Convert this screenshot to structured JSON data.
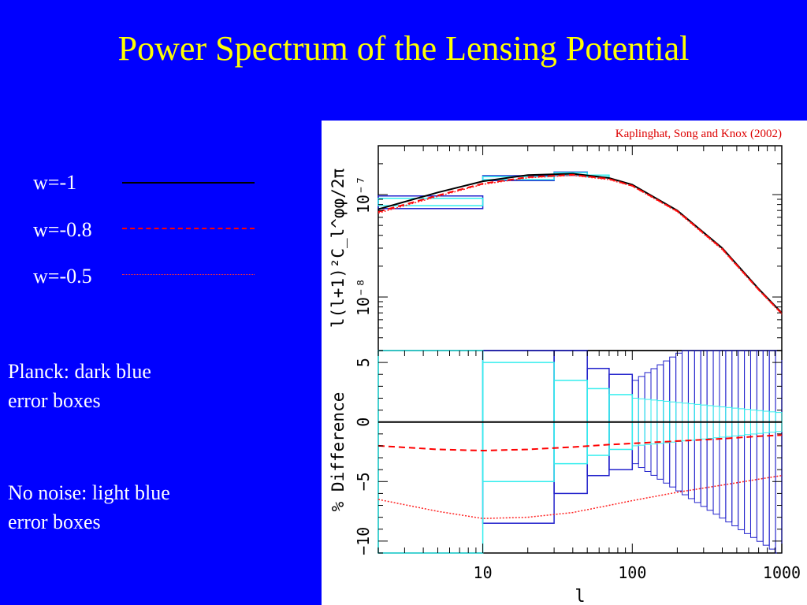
{
  "slide_title": "Power Spectrum of the Lensing Potential",
  "legend": [
    {
      "label": "w=-1",
      "color": "#000000",
      "style": "solid"
    },
    {
      "label": "w=-0.8",
      "color": "#ff0000",
      "style": "dashed"
    },
    {
      "label": "w=-0.5",
      "color": "#ff3333",
      "style": "dotted"
    }
  ],
  "notes": {
    "planck": [
      "Planck:  dark blue",
      "error boxes"
    ],
    "no_noise": [
      "No noise:  light blue",
      "error boxes"
    ]
  },
  "colors": {
    "background": "#0000ff",
    "title": "#ffff00",
    "planck_boxes": "#2222cc",
    "no_noise_boxes": "#33eeee",
    "citation": "#dd0000"
  },
  "chart_data": [
    {
      "type": "line",
      "citation": "Kaplinghat, Song and Knox (2002)",
      "ylabel": "l(l+1)²C_l^φφ/2π",
      "x_scale": "log",
      "y_scale": "log",
      "xlim": [
        2,
        1000
      ],
      "ylim": [
        3e-09,
        3e-07
      ],
      "y_tick_labels": [
        "10⁻⁷",
        "10⁻⁸"
      ],
      "x": [
        2,
        5,
        10,
        20,
        40,
        70,
        100,
        200,
        400,
        700,
        1000
      ],
      "series": [
        {
          "name": "w=-1",
          "values": [
            7.2e-08,
            1.05e-07,
            1.35e-07,
            1.55e-07,
            1.6e-07,
            1.45e-07,
            1.25e-07,
            7e-08,
            3e-08,
            1.2e-08,
            7e-09
          ]
        },
        {
          "name": "w=-0.8",
          "values": [
            6.8e-08,
            9.8e-08,
            1.28e-07,
            1.48e-07,
            1.56e-07,
            1.42e-07,
            1.22e-07,
            6.9e-08,
            2.95e-08,
            1.18e-08,
            6.9e-09
          ]
        },
        {
          "name": "w=-0.5",
          "values": [
            6.6e-08,
            9.6e-08,
            1.26e-07,
            1.46e-07,
            1.54e-07,
            1.4e-07,
            1.21e-07,
            6.8e-08,
            2.9e-08,
            1.17e-08,
            6.8e-09
          ]
        }
      ],
      "planck_error_boxes": [
        {
          "l_min": 2,
          "l_max": 10,
          "center": 8.5e-08,
          "half_width": 1.2e-08
        },
        {
          "l_min": 10,
          "l_max": 30,
          "center": 1.45e-07,
          "half_width": 8e-09
        },
        {
          "l_min": 30,
          "l_max": 50,
          "center": 1.6e-07,
          "half_width": 6e-09
        }
      ],
      "no_noise_error_boxes": [
        {
          "l_min": 2,
          "l_max": 10,
          "center": 8.5e-08,
          "half_width": 7e-09
        },
        {
          "l_min": 10,
          "l_max": 30,
          "center": 1.45e-07,
          "half_width": 5e-09
        },
        {
          "l_min": 30,
          "l_max": 50,
          "center": 1.6e-07,
          "half_width": 4e-09
        },
        {
          "l_min": 50,
          "l_max": 70,
          "center": 1.52e-07,
          "half_width": 3e-09
        }
      ]
    },
    {
      "type": "line",
      "xlabel": "l",
      "ylabel": "% Difference",
      "x_scale": "log",
      "xlim": [
        2,
        1000
      ],
      "ylim": [
        -11,
        6
      ],
      "x_tick_labels": [
        "10",
        "100",
        "1000"
      ],
      "y_tick_labels": [
        "−10",
        "−5",
        "0",
        "5"
      ],
      "x": [
        2,
        5,
        10,
        20,
        40,
        70,
        100,
        200,
        400,
        700,
        1000
      ],
      "series": [
        {
          "name": "w=-1",
          "values": [
            0,
            0,
            0,
            0,
            0,
            0,
            0,
            0,
            0,
            0,
            0
          ]
        },
        {
          "name": "w=-0.8",
          "values": [
            -2.0,
            -2.3,
            -2.4,
            -2.3,
            -2.1,
            -1.9,
            -1.8,
            -1.6,
            -1.4,
            -1.2,
            -1.1
          ]
        },
        {
          "name": "w=-0.5",
          "values": [
            -6.5,
            -7.5,
            -8.1,
            -8.0,
            -7.6,
            -7.0,
            -6.6,
            -5.9,
            -5.3,
            -4.8,
            -4.5
          ]
        }
      ],
      "planck_error_boxes": [
        {
          "l_min": 10,
          "l_max": 30,
          "half_width": 8.5
        },
        {
          "l_min": 30,
          "l_max": 50,
          "half_width": 6.0
        },
        {
          "l_min": 50,
          "l_max": 70,
          "half_width": 4.5
        },
        {
          "l_min": 70,
          "l_max": 100,
          "half_width": 4.0
        },
        {
          "l_min": 100,
          "l_max": 1000,
          "half_width_start": 3.5,
          "half_width_end": 11
        }
      ],
      "no_noise_error_boxes": [
        {
          "l_min": 2,
          "l_max": 10,
          "half_width": 11
        },
        {
          "l_min": 10,
          "l_max": 30,
          "half_width": 5.0
        },
        {
          "l_min": 30,
          "l_max": 50,
          "half_width": 3.5
        },
        {
          "l_min": 50,
          "l_max": 70,
          "half_width": 2.8
        },
        {
          "l_min": 70,
          "l_max": 100,
          "half_width": 2.3
        },
        {
          "l_min": 100,
          "l_max": 1000,
          "half_width_start": 2.0,
          "half_width_end": 0.8
        }
      ]
    }
  ]
}
